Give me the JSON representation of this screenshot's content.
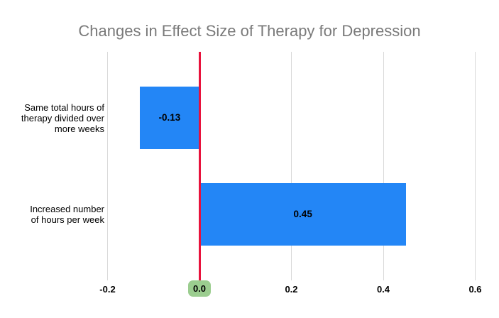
{
  "colors": {
    "background": "#ffffff",
    "bar": "#2386f6",
    "zero_line": "#e8123c",
    "highlight_badge": "#9bcd8f",
    "title_text": "#7a7a7a",
    "gridline": "#d9d9d9",
    "label_text": "#000000"
  },
  "chart_data": {
    "type": "bar",
    "orientation": "horizontal",
    "title": "Changes in Effect Size of Therapy for Depression",
    "rows": [
      {
        "category": "Same total hours of\ntherapy divided over\nmore weeks",
        "value": -0.13,
        "data_label": "-0.13"
      },
      {
        "category": "Increased number\nof hours per week",
        "value": 0.45,
        "data_label": "0.45"
      }
    ],
    "x_axis": {
      "ticks": [
        {
          "value": -0.2,
          "label": "-0.2",
          "highlighted": false
        },
        {
          "value": 0.0,
          "label": "0.0",
          "highlighted": true
        },
        {
          "value": 0.2,
          "label": "0.2",
          "highlighted": false
        },
        {
          "value": 0.4,
          "label": "0.4",
          "highlighted": false
        },
        {
          "value": 0.6,
          "label": "0.6",
          "highlighted": false
        }
      ],
      "xlim": [
        -0.28,
        0.65
      ]
    },
    "zero_reference_line": true,
    "grid": "vertical",
    "legend": "none"
  }
}
